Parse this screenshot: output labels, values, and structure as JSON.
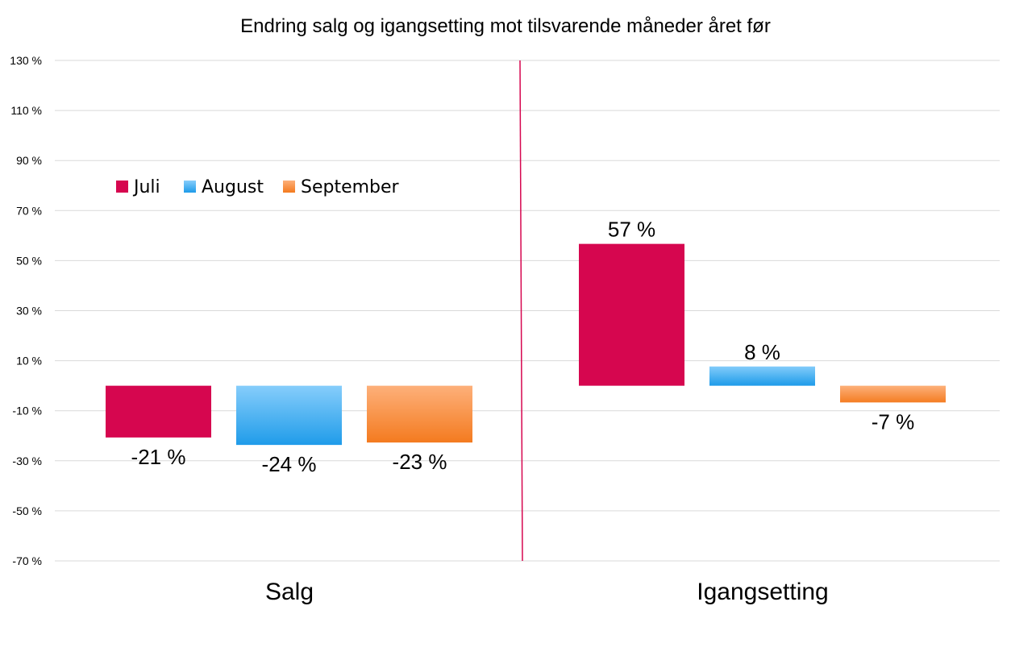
{
  "chart_data": {
    "type": "bar",
    "title": "Endring salg og igangsetting mot tilsvarende måneder året før",
    "categories": [
      "Salg",
      "Igangsetting"
    ],
    "series": [
      {
        "name": "Juli",
        "values": [
          -21,
          57
        ],
        "labels": [
          "-21 %",
          "57 %"
        ],
        "color": "#d6064f"
      },
      {
        "name": "August",
        "values": [
          -24,
          8
        ],
        "labels": [
          "-24 %",
          "8 %"
        ],
        "color": "#2aa6ee"
      },
      {
        "name": "September",
        "values": [
          -23,
          -7
        ],
        "labels": [
          "-23 %",
          "-7 %"
        ],
        "color": "#f7842a"
      }
    ],
    "ylim": [
      -70,
      130
    ],
    "yticks": [
      130,
      110,
      90,
      70,
      50,
      30,
      10,
      -10,
      -30,
      -50,
      -70
    ],
    "ytick_labels": [
      "130 %",
      "110 %",
      "90 %",
      "70 %",
      "50 %",
      "30 %",
      "10 %",
      "-10 %",
      "-30 %",
      "-50 %",
      "-70 %"
    ],
    "grid": true,
    "legend_position": "top-left",
    "divider_color": "#d6064f"
  }
}
